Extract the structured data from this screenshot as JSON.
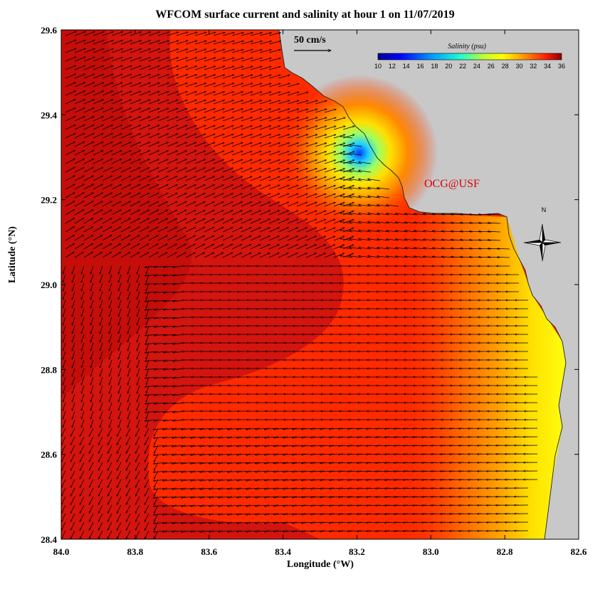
{
  "title": "WFCOM surface current and salinity at hour 1 on 11/07/2019",
  "x_axis_label": "Longitude (°W)",
  "y_axis_label": "Latitude (°N)",
  "x_ticks": [
    "84.0",
    "83.8",
    "83.6",
    "83.4",
    "83.2",
    "83.0",
    "82.8",
    "82.6"
  ],
  "y_ticks": [
    "29.6",
    "29.4",
    "29.2",
    "29.0",
    "28.8",
    "28.6",
    "28.4"
  ],
  "scale_label": "50 cm/s",
  "colorbar": {
    "title": "Salinity (psu)",
    "ticks": [
      "10",
      "12",
      "14",
      "16",
      "18",
      "20",
      "22",
      "24",
      "26",
      "28",
      "30",
      "32",
      "34",
      "36"
    ]
  },
  "watermark": "OCG@USF",
  "compass_label": "N",
  "colors": {
    "land": "#c8c8c8",
    "deep_salinity": "#c81010",
    "mid_salinity": "#ff2a00",
    "fresh_nearshore": "#ffe000",
    "watermark": "#dd0000"
  },
  "icons": [
    "compass-rose-icon",
    "scale-arrow-icon"
  ]
}
